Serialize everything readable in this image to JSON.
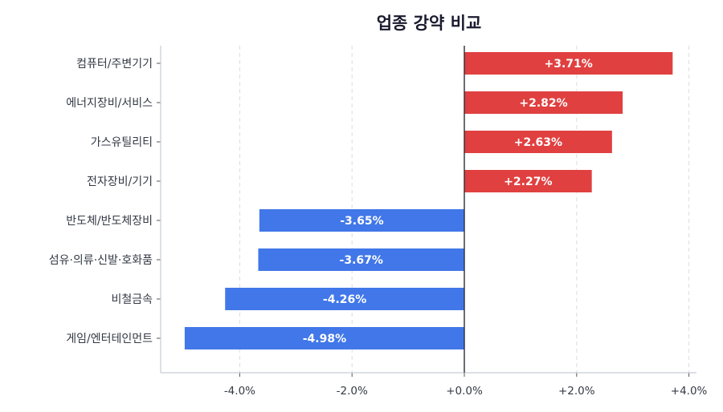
{
  "chart_data": {
    "type": "bar",
    "orientation": "horizontal",
    "title": "업종 강약 비교",
    "xlabel": "",
    "ylabel": "",
    "xlim": [
      -5.4,
      4.15
    ],
    "grid": "vertical dashed",
    "categories": [
      "컴퓨터/주변기기",
      "에너지장비/서비스",
      "가스유틸리티",
      "전자장비/기기",
      "반도체/반도체장비",
      "섬유·의류·신발·호화품",
      "비철금속",
      "게임/엔터테인먼트"
    ],
    "values": [
      3.71,
      2.82,
      2.63,
      2.27,
      -3.65,
      -3.67,
      -4.26,
      -4.98
    ],
    "data_labels": [
      "+3.71%",
      "+2.82%",
      "+2.63%",
      "+2.27%",
      "-3.65%",
      "-3.67%",
      "-4.26%",
      "-4.98%"
    ],
    "x_ticks": [
      -4,
      -2,
      0,
      2,
      4
    ],
    "x_tick_labels": [
      "-4.0%",
      "-2.0%",
      "+0.0%",
      "+2.0%",
      "+4.0%"
    ],
    "colors": {
      "positive": "#e04040",
      "negative": "#4177e8",
      "zero_line": "#2b2f3a",
      "grid": "#d8dde6",
      "axis": "#c8ccd6"
    }
  }
}
